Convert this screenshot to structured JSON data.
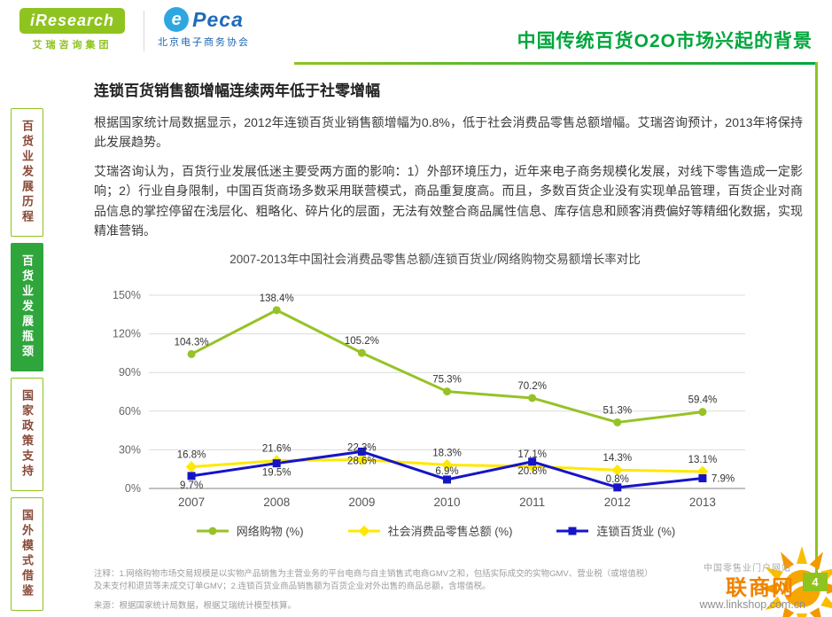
{
  "header": {
    "logo_iresearch_text": "iResearch",
    "logo_iresearch_sub": "艾瑞咨询集团",
    "logo_peca_e": "e",
    "logo_peca_text": "Peca",
    "logo_peca_sub": "北京电子商务协会",
    "title": "中国传统百货O2O市场兴起的背景"
  },
  "sidebar": {
    "items": [
      {
        "label": "百货业发展历程",
        "active": false
      },
      {
        "label": "百货业发展瓶颈",
        "active": true
      },
      {
        "label": "国家政策支持",
        "active": false
      },
      {
        "label": "国外模式借鉴",
        "active": false
      }
    ]
  },
  "main": {
    "heading": "连锁百货销售额增幅连续两年低于社零增幅",
    "paragraph1": "根据国家统计局数据显示，2012年连锁百货业销售额增幅为0.8%，低于社会消费品零售总额增幅。艾瑞咨询预计，2013年将保持此发展趋势。",
    "paragraph2": "艾瑞咨询认为，百货行业发展低迷主要受两方面的影响：1）外部环境压力，近年来电子商务规模化发展，对线下零售造成一定影响；2）行业自身限制，中国百货商场多数采用联营模式，商品重复度高。而且，多数百货企业没有实现单品管理，百货企业对商品信息的掌控停留在浅层化、粗略化、碎片化的层面，无法有效整合商品属性信息、库存信息和顾客消费偏好等精细化数据，实现精准营销。"
  },
  "chart_data": {
    "type": "line",
    "title": "2007-2013年中国社会消费品零售总额/连锁百货业/网络购物交易额增长率对比",
    "categories": [
      "2007",
      "2008",
      "2009",
      "2010",
      "2011",
      "2012",
      "2013"
    ],
    "series": [
      {
        "name": "网络购物 (%)",
        "color": "#97C226",
        "marker": "circle",
        "values": [
          104.3,
          138.4,
          105.2,
          75.3,
          70.2,
          51.3,
          59.4
        ],
        "label_positions": [
          "above",
          "above",
          "above",
          "above",
          "above",
          "above",
          "above"
        ]
      },
      {
        "name": "社会消费品零售总额 (%)",
        "color": "#FFE800",
        "marker": "diamond",
        "values": [
          16.8,
          21.6,
          22.3,
          18.3,
          17.1,
          14.3,
          13.1
        ],
        "label_positions": [
          "above",
          "above",
          "above",
          "above",
          "above",
          "above",
          "above"
        ]
      },
      {
        "name": "连锁百货业 (%)",
        "color": "#1515C8",
        "marker": "square",
        "values": [
          9.7,
          19.5,
          28.6,
          6.9,
          20.8,
          0.8,
          7.9
        ],
        "label_positions": [
          "below",
          "below",
          "below",
          "tight-above",
          "below",
          "tight-above",
          "right"
        ]
      }
    ],
    "ylim": [
      0,
      150
    ],
    "ytick_step": 30,
    "ytick_suffix": "%",
    "grid": true,
    "legend_position": "bottom"
  },
  "notes": {
    "line1": "注释：1.网络购物市场交易规模是以实物产品销售为主营业务的平台电商与自主销售式电商GMV之和，包括实际成交的实物GMV、营业税（或增值税）",
    "line2": "及未支付和退货等未成交订单GMV；2.连锁百货业商品销售额为百货企业对外出售的商品总额，含增值税。",
    "source": "来源：根据国家统计局数据，根据艾瑞统计模型核算。"
  },
  "footer": {
    "site_tagline": "中国零售业门户网站",
    "site_name": "联商网",
    "site_url": "www.linkshop.com.cn",
    "page_number": "4"
  }
}
